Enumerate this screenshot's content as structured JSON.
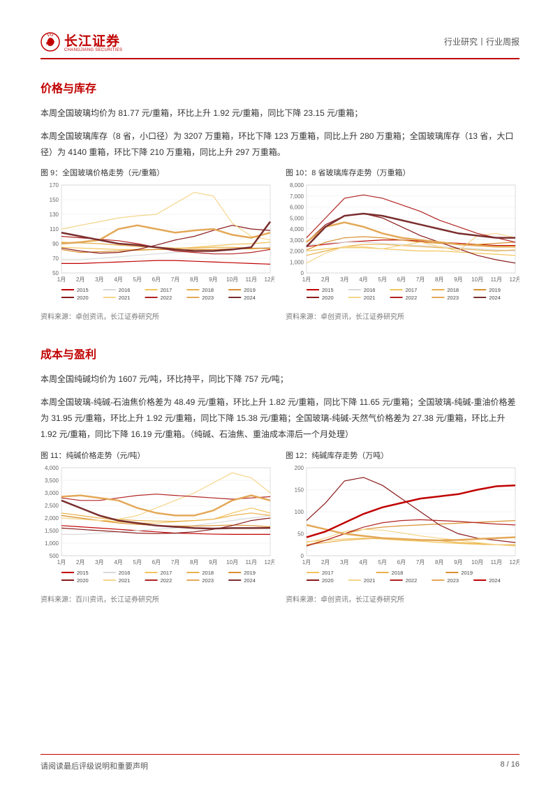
{
  "header": {
    "logo_cn": "长江证券",
    "logo_en": "CHANGJIANG SECURITIES",
    "right": "行业研究丨行业周报"
  },
  "section1": {
    "title": "价格与库存",
    "p1": "本周全国玻璃均价为 81.77 元/重箱，环比上升 1.92 元/重箱，同比下降 23.15 元/重箱；",
    "p2": "本周全国玻璃库存（8 省，小口径）为 3207 万重箱，环比下降 123 万重箱，同比上升 280 万重箱；全国玻璃库存（13 省，大口径）为 4140 重箱，环比下降 210 万重箱，同比上升 297 万重箱。"
  },
  "fig9": {
    "caption": "图 9：全国玻璃价格走势（元/重箱）",
    "source": "资料来源：卓创资讯，长江证券研究所",
    "type": "line",
    "ylim": [
      50,
      170
    ],
    "ytick_step": 20,
    "x_categories": [
      "1月",
      "2月",
      "3月",
      "4月",
      "5月",
      "6月",
      "7月",
      "8月",
      "9月",
      "10月",
      "11月",
      "12月"
    ],
    "legend_rows": [
      [
        "2015",
        "2016",
        "2017",
        "2018",
        "2019"
      ],
      [
        "2020",
        "2021",
        "2022",
        "2023",
        "2024"
      ]
    ],
    "colors": {
      "2015": "#c00000",
      "2016": "#d9d9d9",
      "2017": "#f2c45a",
      "2018": "#e8b04a",
      "2019": "#d89030",
      "2020": "#8a1a1a",
      "2021": "#f5d58a",
      "2022": "#b22222",
      "2023": "#e3a857",
      "2024": "#7a2e2e"
    },
    "series": {
      "2015": [
        63,
        63,
        64,
        65,
        66,
        67,
        67,
        66,
        65,
        64,
        63,
        62
      ],
      "2016": [
        68,
        68,
        70,
        72,
        74,
        76,
        78,
        80,
        82,
        83,
        84,
        85
      ],
      "2017": [
        85,
        84,
        83,
        82,
        82,
        82,
        83,
        85,
        87,
        89,
        90,
        92
      ],
      "2018": [
        92,
        91,
        90,
        88,
        86,
        85,
        84,
        84,
        85,
        85,
        84,
        83
      ],
      "2019": [
        82,
        78,
        79,
        80,
        81,
        82,
        82,
        82,
        82,
        83,
        83,
        84
      ],
      "2020": [
        84,
        80,
        77,
        78,
        82,
        88,
        95,
        100,
        108,
        115,
        110,
        108
      ],
      "2021": [
        110,
        115,
        120,
        125,
        128,
        130,
        145,
        160,
        155,
        118,
        100,
        95
      ],
      "2022": [
        100,
        98,
        96,
        94,
        90,
        85,
        80,
        78,
        76,
        76,
        78,
        82
      ],
      "2023": [
        90,
        92,
        95,
        110,
        115,
        110,
        105,
        108,
        110,
        102,
        98,
        105
      ],
      "2024": [
        105,
        100,
        95,
        90,
        88,
        85,
        82,
        80,
        80,
        82,
        85,
        120
      ]
    },
    "bold_series": [
      "2023",
      "2024"
    ],
    "background_color": "#ffffff",
    "grid_color": "#e8e8e8",
    "axis_fontsize": 8,
    "legend_fontsize": 7.5
  },
  "fig10": {
    "caption": "图 10：8 省玻璃库存走势（万重箱）",
    "source": "资料来源：卓创资讯，长江证券研究所",
    "type": "line",
    "ylim": [
      0,
      8000
    ],
    "ytick_step": 1000,
    "x_categories": [
      "1月",
      "2月",
      "3月",
      "4月",
      "5月",
      "6月",
      "7月",
      "8月",
      "9月",
      "10月",
      "11月",
      "12月"
    ],
    "legend_rows": [
      [
        "2015",
        "2016",
        "2017",
        "2018",
        "2019"
      ],
      [
        "2020",
        "2021",
        "2022",
        "2023",
        "2024"
      ]
    ],
    "colors": {
      "2015": "#c00000",
      "2016": "#d9d9d9",
      "2017": "#f2c45a",
      "2018": "#e8b04a",
      "2019": "#d89030",
      "2020": "#8a1a1a",
      "2021": "#f5d58a",
      "2022": "#b22222",
      "2023": "#e3a857",
      "2024": "#7a2e2e"
    },
    "series": {
      "2015": [
        2400,
        2600,
        2800,
        2900,
        3000,
        3000,
        2900,
        2800,
        2700,
        2600,
        2500,
        2500
      ],
      "2016": [
        2500,
        2700,
        2800,
        2800,
        2700,
        2600,
        2500,
        2400,
        2300,
        2200,
        2100,
        2000
      ],
      "2017": [
        2000,
        2200,
        2300,
        2300,
        2200,
        2100,
        2000,
        2000,
        1900,
        1800,
        1700,
        1600
      ],
      "2018": [
        1600,
        2000,
        2400,
        2600,
        2600,
        2500,
        2400,
        2300,
        2200,
        2100,
        2000,
        2100
      ],
      "2019": [
        2100,
        2800,
        3200,
        3300,
        3200,
        3000,
        2800,
        2700,
        2600,
        2600,
        2700,
        2800
      ],
      "2020": [
        2800,
        4400,
        5200,
        5400,
        5000,
        4200,
        3400,
        2800,
        2200,
        1600,
        1200,
        900
      ],
      "2021": [
        900,
        1800,
        2400,
        2400,
        2200,
        2500,
        2800,
        2400,
        2000,
        3400,
        3600,
        3200
      ],
      "2022": [
        3200,
        5000,
        6800,
        7100,
        6800,
        6200,
        5600,
        4800,
        4200,
        3600,
        3200,
        2800
      ],
      "2023": [
        2800,
        4200,
        4600,
        4200,
        3600,
        3200,
        3000,
        2800,
        2600,
        2500,
        2400,
        2400
      ],
      "2024": [
        2400,
        4200,
        5200,
        5400,
        5200,
        4800,
        4400,
        4000,
        3600,
        3400,
        3200,
        3200
      ]
    },
    "bold_series": [
      "2023",
      "2024"
    ],
    "background_color": "#ffffff",
    "grid_color": "#e8e8e8",
    "axis_fontsize": 8,
    "legend_fontsize": 7.5
  },
  "section2": {
    "title": "成本与盈利",
    "p1": "本周全国纯碱均价为 1607 元/吨，环比持平，同比下降 757 元/吨；",
    "p2": "本周全国玻璃-纯碱-石油焦价格差为 48.49 元/重箱，环比上升 1.82 元/重箱，同比下降 11.65 元/重箱；全国玻璃-纯碱-重油价格差为 31.95 元/重箱，环比上升 1.92 元/重箱，同比下降 15.38 元/重箱；全国玻璃-纯碱-天然气价格差为 27.38 元/重箱，环比上升 1.92 元/重箱，同比下降 16.19 元/重箱。（纯碱、石油焦、重油成本滞后一个月处理）"
  },
  "fig11": {
    "caption": "图 11：纯碱价格走势（元/吨）",
    "source": "资料来源：百川资讯，长江证券研究所",
    "type": "line",
    "ylim": [
      500,
      4000
    ],
    "ytick_step": 500,
    "x_categories": [
      "1月",
      "2月",
      "3月",
      "4月",
      "5月",
      "6月",
      "7月",
      "8月",
      "9月",
      "10月",
      "11月",
      "12月"
    ],
    "legend_rows": [
      [
        "2015",
        "2016",
        "2017",
        "2018",
        "2019"
      ],
      [
        "2020",
        "2021",
        "2022",
        "2023",
        "2024"
      ]
    ],
    "colors": {
      "2015": "#c00000",
      "2016": "#d9d9d9",
      "2017": "#f2c45a",
      "2018": "#e8b04a",
      "2019": "#d89030",
      "2020": "#8a1a1a",
      "2021": "#f5d58a",
      "2022": "#b22222",
      "2023": "#e3a857",
      "2024": "#7a2e2e"
    },
    "series": {
      "2015": [
        1700,
        1650,
        1600,
        1550,
        1500,
        1450,
        1400,
        1380,
        1360,
        1350,
        1350,
        1350
      ],
      "2016": [
        1350,
        1350,
        1400,
        1450,
        1500,
        1550,
        1600,
        1700,
        1800,
        1900,
        2000,
        2100
      ],
      "2017": [
        2100,
        2000,
        1900,
        1850,
        1800,
        1800,
        1850,
        1900,
        1950,
        2200,
        2400,
        2200
      ],
      "2018": [
        2200,
        2100,
        2000,
        1950,
        1900,
        1880,
        1870,
        1900,
        1950,
        2100,
        2200,
        2100
      ],
      "2019": [
        2100,
        2000,
        1900,
        1800,
        1750,
        1700,
        1680,
        1680,
        1700,
        1720,
        1700,
        1650
      ],
      "2020": [
        1600,
        1550,
        1500,
        1450,
        1400,
        1380,
        1400,
        1450,
        1550,
        1700,
        1900,
        2000
      ],
      "2021": [
        2000,
        1950,
        1900,
        1950,
        2100,
        2400,
        2700,
        3000,
        3400,
        3800,
        3600,
        3000
      ],
      "2022": [
        2800,
        2700,
        2700,
        2800,
        2900,
        2950,
        2900,
        2850,
        2800,
        2750,
        2800,
        2850
      ],
      "2023": [
        2850,
        2900,
        2800,
        2700,
        2400,
        2200,
        2100,
        2100,
        2300,
        2700,
        2900,
        2700
      ],
      "2024": [
        2700,
        2400,
        2100,
        1900,
        1800,
        1700,
        1650,
        1600,
        1580,
        1600,
        1600,
        1607
      ]
    },
    "bold_series": [
      "2023",
      "2024"
    ],
    "background_color": "#ffffff",
    "grid_color": "#e8e8e8",
    "axis_fontsize": 8,
    "legend_fontsize": 7.5
  },
  "fig12": {
    "caption": "图 12：纯碱库存走势（万吨）",
    "source": "资料来源：卓创资讯，长江证券研究所",
    "type": "line",
    "ylim": [
      0,
      200
    ],
    "ytick_step": 50,
    "x_categories": [
      "1月",
      "2月",
      "3月",
      "4月",
      "5月",
      "6月",
      "7月",
      "8月",
      "9月",
      "10月",
      "11月",
      "12月"
    ],
    "legend_rows": [
      [
        "2017",
        "2018",
        "2019"
      ],
      [
        "2020",
        "2021",
        "2022",
        "2023",
        "2024"
      ]
    ],
    "colors": {
      "2017": "#f2c45a",
      "2018": "#e8b04a",
      "2019": "#d89030",
      "2020": "#8a1a1a",
      "2021": "#f5d58a",
      "2022": "#b22222",
      "2023": "#e3a857",
      "2024": "#c00000"
    },
    "series": {
      "2017": [
        32,
        35,
        38,
        40,
        38,
        35,
        33,
        30,
        28,
        26,
        25,
        25
      ],
      "2018": [
        25,
        30,
        35,
        38,
        40,
        38,
        36,
        34,
        30,
        28,
        25,
        24
      ],
      "2019": [
        24,
        35,
        50,
        60,
        65,
        68,
        70,
        72,
        74,
        76,
        78,
        80
      ],
      "2020": [
        80,
        120,
        170,
        178,
        160,
        130,
        100,
        70,
        50,
        40,
        35,
        30
      ],
      "2021": [
        30,
        40,
        55,
        60,
        58,
        52,
        45,
        40,
        35,
        30,
        25,
        22
      ],
      "2022": [
        22,
        35,
        50,
        65,
        75,
        80,
        82,
        80,
        78,
        75,
        72,
        70
      ],
      "2023": [
        70,
        60,
        50,
        45,
        40,
        38,
        36,
        35,
        36,
        38,
        40,
        42
      ],
      "2024": [
        42,
        55,
        75,
        95,
        110,
        120,
        130,
        135,
        140,
        150,
        158,
        160
      ]
    },
    "bold_series": [
      "2023",
      "2024"
    ],
    "background_color": "#ffffff",
    "grid_color": "#e8e8e8",
    "axis_fontsize": 8,
    "legend_fontsize": 7.5
  },
  "footer": {
    "left": "请阅读最后评级说明和重要声明",
    "right": "8 / 16"
  }
}
